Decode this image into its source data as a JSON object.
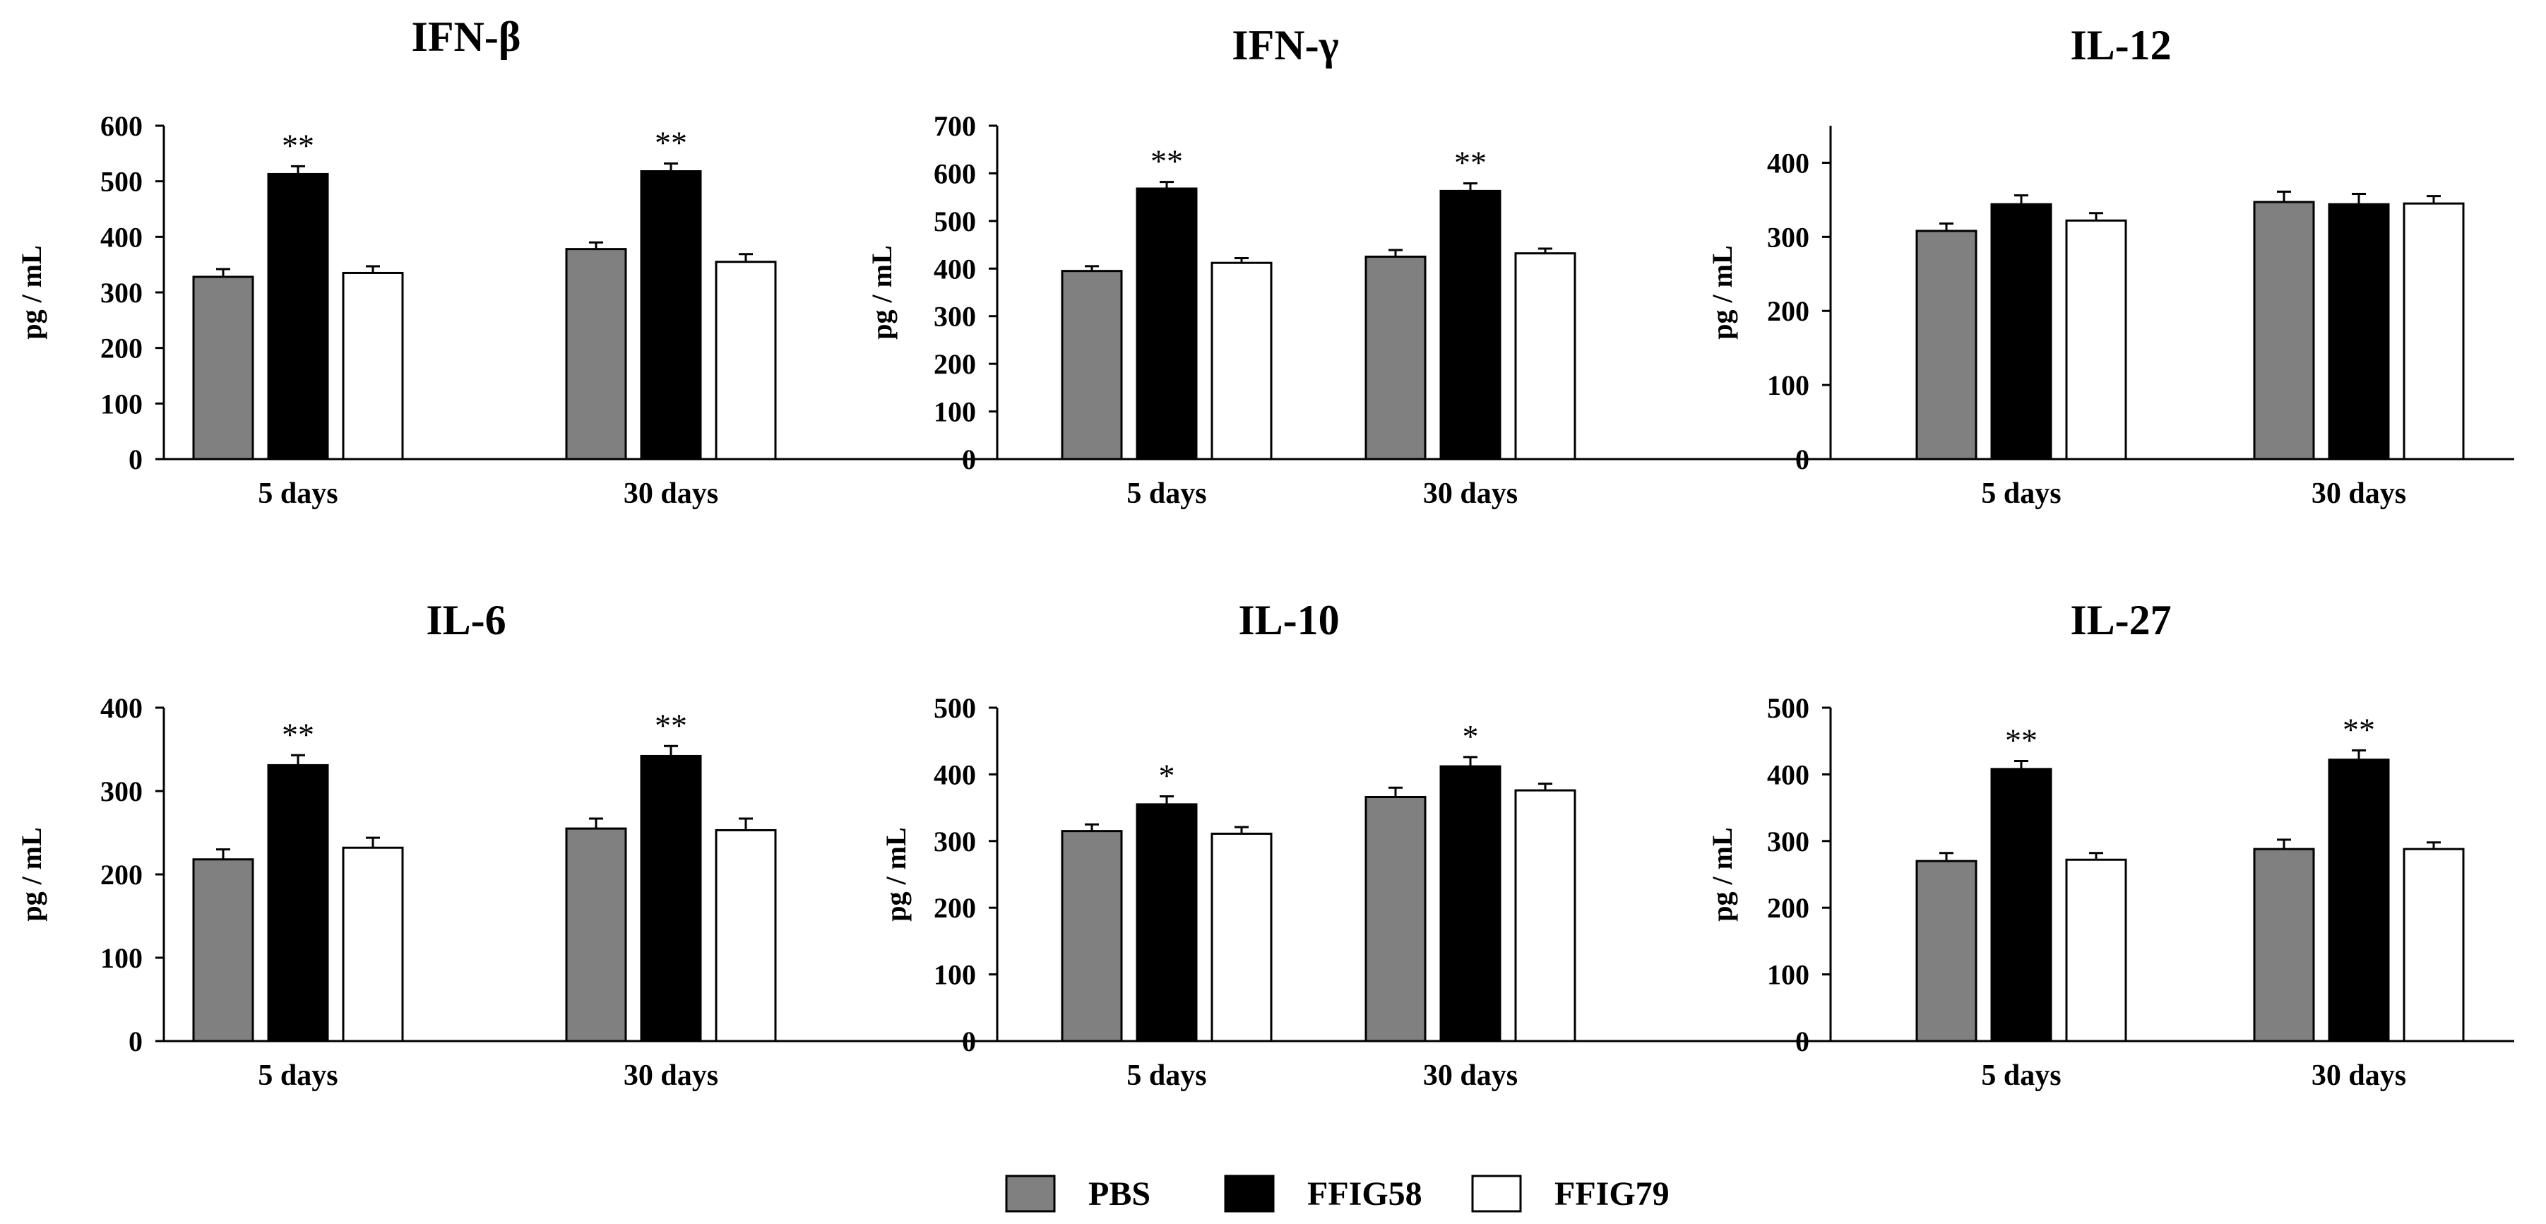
{
  "legend": [
    {
      "name": "PBS",
      "color": "#808080"
    },
    {
      "name": "FFIG58",
      "color": "#000000"
    },
    {
      "name": "FFIG79",
      "color": "#ffffff"
    }
  ],
  "chart_data": [
    {
      "type": "bar",
      "title": "IFN-β",
      "ylabel": "pg / mL",
      "xlabel": "",
      "categories": [
        "5 days",
        "30 days"
      ],
      "ylim": [
        0,
        600
      ],
      "yticks": [
        0,
        100,
        200,
        300,
        400,
        500,
        600
      ],
      "series": [
        {
          "name": "PBS",
          "values": [
            328,
            378
          ],
          "errors": [
            14,
            12
          ]
        },
        {
          "name": "FFIG58",
          "values": [
            513,
            518
          ],
          "errors": [
            14,
            14
          ]
        },
        {
          "name": "FFIG79",
          "values": [
            335,
            355
          ],
          "errors": [
            12,
            14
          ]
        }
      ],
      "annotations": [
        {
          "category": "5 days",
          "series": "FFIG58",
          "text": "**"
        },
        {
          "category": "30 days",
          "series": "FFIG58",
          "text": "**"
        }
      ]
    },
    {
      "type": "bar",
      "title": "IFN-γ",
      "ylabel": "pg / mL",
      "xlabel": "",
      "categories": [
        "5 days",
        "30 days"
      ],
      "ylim": [
        0,
        700
      ],
      "yticks": [
        0,
        100,
        200,
        300,
        400,
        500,
        600,
        700
      ],
      "series": [
        {
          "name": "PBS",
          "values": [
            395,
            425
          ],
          "errors": [
            10,
            14
          ]
        },
        {
          "name": "FFIG58",
          "values": [
            568,
            563
          ],
          "errors": [
            14,
            16
          ]
        },
        {
          "name": "FFIG79",
          "values": [
            412,
            432
          ],
          "errors": [
            10,
            10
          ]
        }
      ],
      "annotations": [
        {
          "category": "5 days",
          "series": "FFIG58",
          "text": "**"
        },
        {
          "category": "30 days",
          "series": "FFIG58",
          "text": "**"
        }
      ]
    },
    {
      "type": "bar",
      "title": "IL-12",
      "ylabel": "pg / mL",
      "xlabel": "",
      "categories": [
        "5 days",
        "30 days"
      ],
      "ylim": [
        0,
        450
      ],
      "yticks": [
        0,
        100,
        200,
        300,
        400
      ],
      "series": [
        {
          "name": "PBS",
          "values": [
            308,
            347
          ],
          "errors": [
            10,
            14
          ]
        },
        {
          "name": "FFIG58",
          "values": [
            344,
            344
          ],
          "errors": [
            12,
            14
          ]
        },
        {
          "name": "FFIG79",
          "values": [
            322,
            345
          ],
          "errors": [
            10,
            10
          ]
        }
      ],
      "annotations": []
    },
    {
      "type": "bar",
      "title": "IL-6",
      "ylabel": "pg / mL",
      "xlabel": "",
      "categories": [
        "5 days",
        "30 days"
      ],
      "ylim": [
        0,
        400
      ],
      "yticks": [
        0,
        100,
        200,
        300,
        400
      ],
      "series": [
        {
          "name": "PBS",
          "values": [
            218,
            255
          ],
          "errors": [
            12,
            12
          ]
        },
        {
          "name": "FFIG58",
          "values": [
            331,
            342
          ],
          "errors": [
            12,
            12
          ]
        },
        {
          "name": "FFIG79",
          "values": [
            232,
            253
          ],
          "errors": [
            12,
            14
          ]
        }
      ],
      "annotations": [
        {
          "category": "5 days",
          "series": "FFIG58",
          "text": "**"
        },
        {
          "category": "30 days",
          "series": "FFIG58",
          "text": "**"
        }
      ]
    },
    {
      "type": "bar",
      "title": "IL-10",
      "ylabel": "pg / mL",
      "xlabel": "",
      "categories": [
        "5 days",
        "30 days"
      ],
      "ylim": [
        0,
        500
      ],
      "yticks": [
        0,
        100,
        200,
        300,
        400,
        500
      ],
      "series": [
        {
          "name": "PBS",
          "values": [
            315,
            366
          ],
          "errors": [
            10,
            14
          ]
        },
        {
          "name": "FFIG58",
          "values": [
            355,
            412
          ],
          "errors": [
            12,
            14
          ]
        },
        {
          "name": "FFIG79",
          "values": [
            311,
            376
          ],
          "errors": [
            10,
            10
          ]
        }
      ],
      "annotations": [
        {
          "category": "5 days",
          "series": "FFIG58",
          "text": "*"
        },
        {
          "category": "30 days",
          "series": "FFIG58",
          "text": "*"
        }
      ]
    },
    {
      "type": "bar",
      "title": "IL-27",
      "ylabel": "pg / mL",
      "xlabel": "",
      "categories": [
        "5 days",
        "30 days"
      ],
      "ylim": [
        0,
        500
      ],
      "yticks": [
        0,
        100,
        200,
        300,
        400,
        500
      ],
      "series": [
        {
          "name": "PBS",
          "values": [
            270,
            288
          ],
          "errors": [
            12,
            14
          ]
        },
        {
          "name": "FFIG58",
          "values": [
            408,
            422
          ],
          "errors": [
            12,
            14
          ]
        },
        {
          "name": "FFIG79",
          "values": [
            272,
            288
          ],
          "errors": [
            10,
            10
          ]
        }
      ],
      "annotations": [
        {
          "category": "5 days",
          "series": "FFIG58",
          "text": "**"
        },
        {
          "category": "30 days",
          "series": "FFIG58",
          "text": "**"
        }
      ]
    }
  ]
}
